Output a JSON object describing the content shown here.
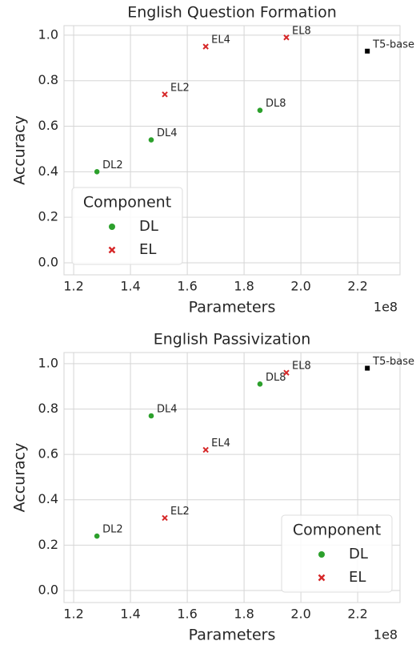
{
  "chart_data": [
    {
      "type": "scatter",
      "title": "English Question Formation",
      "xlabel": "Parameters",
      "ylabel": "Accuracy",
      "x_offset_label": "1e8",
      "xlim": [
        116600000,
        234900000
      ],
      "ylim": [
        -0.053,
        1.042
      ],
      "xticks": [
        {
          "value": 120000000,
          "label": "1.2"
        },
        {
          "value": 140000000,
          "label": "1.4"
        },
        {
          "value": 160000000,
          "label": "1.6"
        },
        {
          "value": 180000000,
          "label": "1.8"
        },
        {
          "value": 200000000,
          "label": "2.0"
        },
        {
          "value": 220000000,
          "label": "2.2"
        }
      ],
      "yticks": [
        {
          "value": 0,
          "label": "0.0"
        },
        {
          "value": 0.2,
          "label": "0.2"
        },
        {
          "value": 0.4,
          "label": "0.4"
        },
        {
          "value": 0.6,
          "label": "0.6"
        },
        {
          "value": 0.8,
          "label": "0.8"
        },
        {
          "value": 1,
          "label": "1.0"
        }
      ],
      "grid": true,
      "legend_title": "Component",
      "legend_location": "lower left",
      "series": [
        {
          "name": "DL",
          "color": "#2ca02c",
          "marker": "circle",
          "x": [
            128200000,
            147300000,
            185600000
          ],
          "values": [
            0.4,
            0.54,
            0.67
          ],
          "labels": [
            "DL2",
            "DL4",
            "DL8"
          ]
        },
        {
          "name": "EL",
          "color": "#d62728",
          "marker": "x",
          "x": [
            152100000,
            166500000,
            194900000
          ],
          "values": [
            0.74,
            0.95,
            0.99
          ],
          "labels": [
            "EL2",
            "EL4",
            "EL8"
          ]
        },
        {
          "name": "T5-base",
          "color": "#000000",
          "marker": "square",
          "in_legend": false,
          "x": [
            223400000
          ],
          "values": [
            0.93
          ],
          "labels": [
            "T5-base"
          ]
        }
      ]
    },
    {
      "type": "scatter",
      "title": "English Passivization",
      "xlabel": "Parameters",
      "ylabel": "Accuracy",
      "x_offset_label": "1e8",
      "xlim": [
        116600000,
        234900000
      ],
      "ylim": [
        -0.053,
        1.049
      ],
      "xticks": [
        {
          "value": 120000000,
          "label": "1.2"
        },
        {
          "value": 140000000,
          "label": "1.4"
        },
        {
          "value": 160000000,
          "label": "1.6"
        },
        {
          "value": 180000000,
          "label": "1.8"
        },
        {
          "value": 200000000,
          "label": "2.0"
        },
        {
          "value": 220000000,
          "label": "2.2"
        }
      ],
      "yticks": [
        {
          "value": 0,
          "label": "0.0"
        },
        {
          "value": 0.2,
          "label": "0.2"
        },
        {
          "value": 0.4,
          "label": "0.4"
        },
        {
          "value": 0.6,
          "label": "0.6"
        },
        {
          "value": 0.8,
          "label": "0.8"
        },
        {
          "value": 1,
          "label": "1.0"
        }
      ],
      "grid": true,
      "legend_title": "Component",
      "legend_location": "lower right",
      "series": [
        {
          "name": "DL",
          "color": "#2ca02c",
          "marker": "circle",
          "x": [
            128200000,
            147300000,
            185600000
          ],
          "values": [
            0.24,
            0.77,
            0.91
          ],
          "labels": [
            "DL2",
            "DL4",
            "DL8"
          ]
        },
        {
          "name": "EL",
          "color": "#d62728",
          "marker": "x",
          "x": [
            152100000,
            166500000,
            194900000
          ],
          "values": [
            0.32,
            0.62,
            0.96
          ],
          "labels": [
            "EL2",
            "EL4",
            "EL8"
          ]
        },
        {
          "name": "T5-base",
          "color": "#000000",
          "marker": "square",
          "in_legend": false,
          "x": [
            223400000
          ],
          "values": [
            0.98
          ],
          "labels": [
            "T5-base"
          ]
        }
      ]
    }
  ]
}
